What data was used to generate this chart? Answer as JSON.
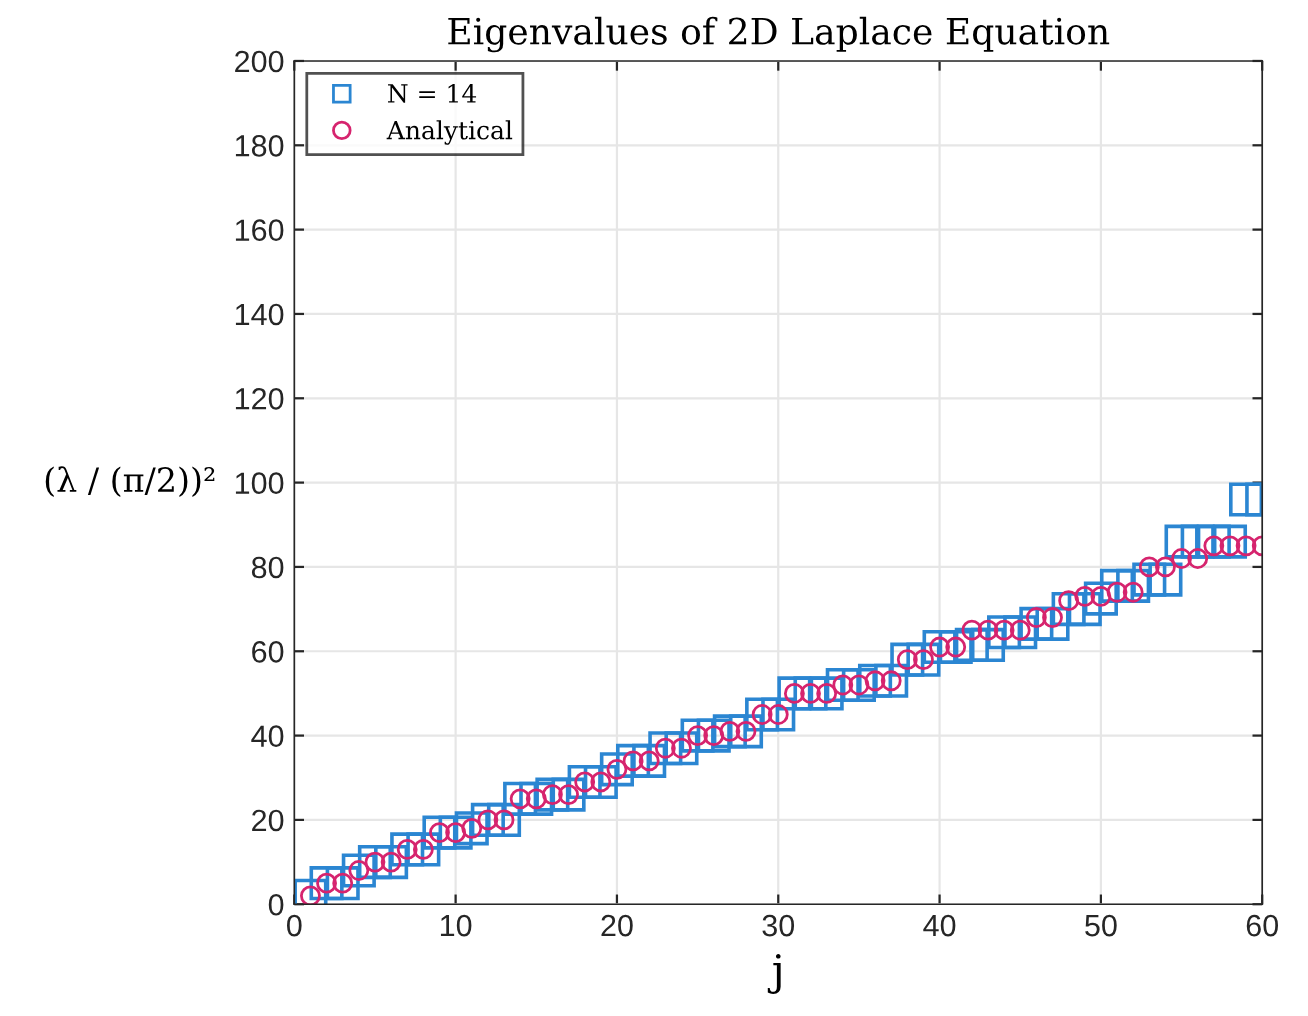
{
  "chart_data": {
    "type": "scatter",
    "title": "Eigenvalues of 2D Laplace Equation",
    "xlabel": "j",
    "ylabel": "(λ / (π/2))²",
    "x": [
      1,
      2,
      3,
      4,
      5,
      6,
      7,
      8,
      9,
      10,
      11,
      12,
      13,
      14,
      15,
      16,
      17,
      18,
      19,
      20,
      21,
      22,
      23,
      24,
      25,
      26,
      27,
      28,
      29,
      30,
      31,
      32,
      33,
      34,
      35,
      36,
      37,
      38,
      39,
      40,
      41,
      42,
      43,
      44,
      45,
      46,
      47,
      48,
      49,
      50,
      51,
      52,
      53,
      54,
      55,
      56,
      57,
      58,
      59,
      60
    ],
    "series": [
      {
        "name": "N = 14",
        "color": "#2b86d2",
        "marker": "square",
        "values": [
          2,
          5,
          5,
          8,
          10,
          10,
          13,
          13,
          17,
          17,
          18,
          20,
          20,
          25,
          25,
          26,
          26,
          29,
          29,
          32,
          34,
          34,
          37,
          37,
          40,
          40,
          41,
          41,
          45,
          45,
          50,
          50,
          50,
          52,
          52,
          53,
          53,
          58,
          58,
          61,
          61,
          61.5,
          61.5,
          64.5,
          64.5,
          66.5,
          66.5,
          70,
          70,
          72.5,
          75.5,
          75.5,
          77,
          77,
          86,
          86,
          86,
          86,
          96,
          96
        ]
      },
      {
        "name": "Analytical",
        "color": "#d6246e",
        "marker": "circle",
        "values": [
          2,
          5,
          5,
          8,
          10,
          10,
          13,
          13,
          17,
          17,
          18,
          20,
          20,
          25,
          25,
          26,
          26,
          29,
          29,
          32,
          34,
          34,
          37,
          37,
          40,
          40,
          41,
          41,
          45,
          45,
          50,
          50,
          50,
          52,
          52,
          53,
          53,
          58,
          58,
          61,
          61,
          65,
          65,
          65,
          65,
          68,
          68,
          72,
          73,
          73,
          74,
          74,
          80,
          80,
          82,
          82,
          85,
          85,
          85,
          85
        ]
      }
    ],
    "xlim": [
      0,
      60
    ],
    "xticks": [
      0,
      10,
      20,
      30,
      40,
      50,
      60
    ],
    "ylim": [
      0,
      200
    ],
    "yticks": [
      0,
      20,
      40,
      60,
      80,
      100,
      120,
      140,
      160,
      180,
      200
    ],
    "grid": true,
    "legend": "top left"
  }
}
